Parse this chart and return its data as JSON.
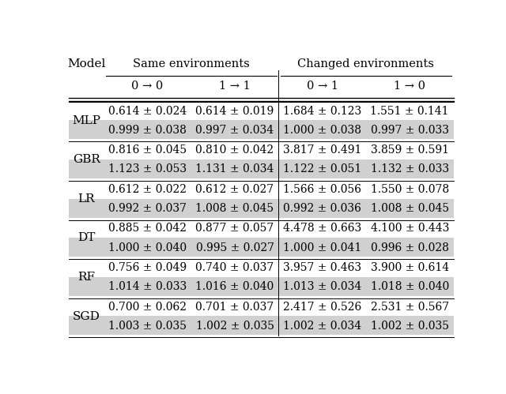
{
  "col_group_labels": [
    "Same environments",
    "Changed environments"
  ],
  "col_headers": [
    "0 → 0",
    "1 → 1",
    "0 → 1",
    "1 → 0"
  ],
  "row_labels": [
    "MLP",
    "GBR",
    "LR",
    "DT",
    "RF",
    "SGD"
  ],
  "data": [
    [
      [
        "0.614 ± 0.024",
        "0.614 ± 0.019",
        "1.684 ± 0.123",
        "1.551 ± 0.141"
      ],
      [
        "0.999 ± 0.038",
        "0.997 ± 0.034",
        "1.000 ± 0.038",
        "0.997 ± 0.033"
      ]
    ],
    [
      [
        "0.816 ± 0.045",
        "0.810 ± 0.042",
        "3.817 ± 0.491",
        "3.859 ± 0.591"
      ],
      [
        "1.123 ± 0.053",
        "1.131 ± 0.034",
        "1.122 ± 0.051",
        "1.132 ± 0.033"
      ]
    ],
    [
      [
        "0.612 ± 0.022",
        "0.612 ± 0.027",
        "1.566 ± 0.056",
        "1.550 ± 0.078"
      ],
      [
        "0.992 ± 0.037",
        "1.008 ± 0.045",
        "0.992 ± 0.036",
        "1.008 ± 0.045"
      ]
    ],
    [
      [
        "0.885 ± 0.042",
        "0.877 ± 0.057",
        "4.478 ± 0.663",
        "4.100 ± 0.443"
      ],
      [
        "1.000 ± 0.040",
        "0.995 ± 0.027",
        "1.000 ± 0.041",
        "0.996 ± 0.028"
      ]
    ],
    [
      [
        "0.756 ± 0.049",
        "0.740 ± 0.037",
        "3.957 ± 0.463",
        "3.900 ± 0.614"
      ],
      [
        "1.014 ± 0.033",
        "1.016 ± 0.040",
        "1.013 ± 0.034",
        "1.018 ± 0.040"
      ]
    ],
    [
      [
        "0.700 ± 0.062",
        "0.701 ± 0.037",
        "2.417 ± 0.526",
        "2.531 ± 0.567"
      ],
      [
        "1.003 ± 0.035",
        "1.002 ± 0.035",
        "1.002 ± 0.034",
        "1.002 ± 0.035"
      ]
    ]
  ],
  "shaded_color": "#d0d0d0",
  "bg_color": "#ffffff",
  "font_size": 10.0,
  "header_font_size": 10.5,
  "model_font_size": 11.0
}
